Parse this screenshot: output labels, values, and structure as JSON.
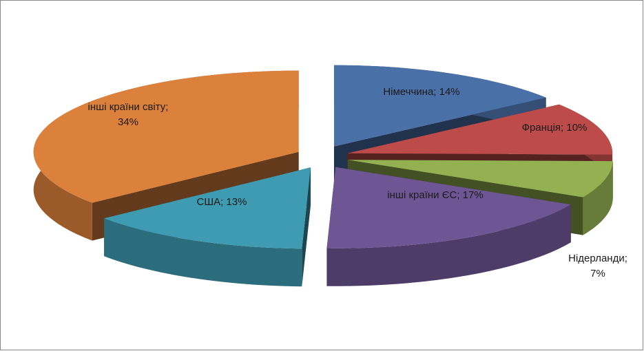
{
  "chart_data": {
    "type": "pie3d",
    "values": [
      14,
      10,
      7,
      17,
      13,
      34
    ],
    "value_labels": [
      "Німеччина; 14%",
      "Франція; 10%",
      "Нідерланди; 7%",
      "інші країни ЄС; 17%",
      "США; 13%",
      "інші країни світу; 34%"
    ],
    "colors": [
      "#4a70a8",
      "#bc4b49",
      "#93b150",
      "#6e5695",
      "#3f9bb2",
      "#dc813b"
    ]
  }
}
